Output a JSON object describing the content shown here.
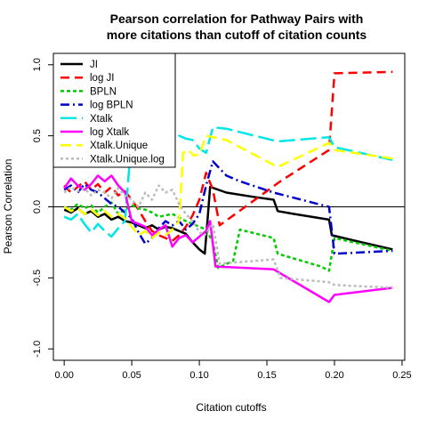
{
  "chart_data": {
    "type": "line",
    "title_lines": [
      "Pearson correlation for Pathway Pairs with",
      "more citations than cutoff of citation counts"
    ],
    "xlabel": "Citation cutoffs",
    "ylabel": "Pearson Correlation",
    "xlim": [
      0.0,
      0.25
    ],
    "ylim": [
      -1.0,
      1.0
    ],
    "x_ticks": [
      0.0,
      0.05,
      0.1,
      0.15,
      0.2,
      0.25
    ],
    "x_tick_labels": [
      "0.00",
      "0.05",
      "0.10",
      "0.15",
      "0.20",
      "0.25"
    ],
    "y_ticks": [
      -1.0,
      -0.5,
      0.0,
      0.5,
      1.0
    ],
    "y_tick_labels": [
      "-1.0",
      "-0.5",
      "0.0",
      "0.5",
      "1.0"
    ],
    "reference_line_y": 0,
    "grid": false,
    "legend_position": "top-left",
    "series": [
      {
        "name": "JI",
        "color": "#000000",
        "dash": "solid",
        "points": [
          [
            0.0,
            -0.02
          ],
          [
            0.005,
            -0.04
          ],
          [
            0.01,
            -0.01
          ],
          [
            0.015,
            -0.05
          ],
          [
            0.02,
            -0.03
          ],
          [
            0.025,
            -0.07
          ],
          [
            0.03,
            -0.05
          ],
          [
            0.035,
            -0.09
          ],
          [
            0.04,
            -0.07
          ],
          [
            0.045,
            -0.1
          ],
          [
            0.05,
            -0.11
          ],
          [
            0.055,
            -0.13
          ],
          [
            0.06,
            -0.15
          ],
          [
            0.065,
            -0.13
          ],
          [
            0.07,
            -0.16
          ],
          [
            0.075,
            -0.14
          ],
          [
            0.08,
            -0.15
          ],
          [
            0.085,
            -0.17
          ],
          [
            0.09,
            -0.19
          ],
          [
            0.095,
            -0.25
          ],
          [
            0.1,
            -0.3
          ],
          [
            0.104,
            -0.33
          ],
          [
            0.106,
            -0.1
          ],
          [
            0.108,
            0.14
          ],
          [
            0.12,
            0.1
          ],
          [
            0.14,
            0.07
          ],
          [
            0.155,
            0.05
          ],
          [
            0.158,
            -0.03
          ],
          [
            0.17,
            -0.05
          ],
          [
            0.196,
            -0.09
          ],
          [
            0.198,
            -0.2
          ],
          [
            0.22,
            -0.25
          ],
          [
            0.243,
            -0.3
          ]
        ]
      },
      {
        "name": "log JI",
        "color": "#ff0000",
        "dash": "10,6",
        "points": [
          [
            0.0,
            0.15
          ],
          [
            0.005,
            0.1
          ],
          [
            0.01,
            0.14
          ],
          [
            0.015,
            0.18
          ],
          [
            0.02,
            0.12
          ],
          [
            0.025,
            0.16
          ],
          [
            0.03,
            0.1
          ],
          [
            0.035,
            0.14
          ],
          [
            0.04,
            0.08
          ],
          [
            0.045,
            0.11
          ],
          [
            0.05,
            0.05
          ],
          [
            0.055,
            -0.02
          ],
          [
            0.06,
            -0.1
          ],
          [
            0.065,
            -0.17
          ],
          [
            0.07,
            -0.2
          ],
          [
            0.075,
            -0.22
          ],
          [
            0.08,
            -0.24
          ],
          [
            0.085,
            -0.2
          ],
          [
            0.09,
            -0.14
          ],
          [
            0.095,
            -0.06
          ],
          [
            0.1,
            0.05
          ],
          [
            0.105,
            0.24
          ],
          [
            0.11,
            0.12
          ],
          [
            0.115,
            -0.13
          ],
          [
            0.16,
            0.18
          ],
          [
            0.196,
            0.4
          ],
          [
            0.2,
            0.94
          ],
          [
            0.243,
            0.95
          ]
        ]
      },
      {
        "name": "BPLN",
        "color": "#00cc00",
        "dash": "4,3",
        "points": [
          [
            0.0,
            0.0
          ],
          [
            0.005,
            -0.02
          ],
          [
            0.01,
            0.02
          ],
          [
            0.015,
            -0.01
          ],
          [
            0.02,
            0.01
          ],
          [
            0.025,
            -0.04
          ],
          [
            0.03,
            0.0
          ],
          [
            0.035,
            0.03
          ],
          [
            0.04,
            -0.05
          ],
          [
            0.045,
            -0.02
          ],
          [
            0.05,
            0.01
          ],
          [
            0.055,
            -0.01
          ],
          [
            0.06,
            -0.02
          ],
          [
            0.065,
            -0.04
          ],
          [
            0.07,
            -0.07
          ],
          [
            0.08,
            -0.05
          ],
          [
            0.09,
            -0.1
          ],
          [
            0.1,
            -0.14
          ],
          [
            0.105,
            -0.16
          ],
          [
            0.11,
            -0.25
          ],
          [
            0.114,
            -0.43
          ],
          [
            0.125,
            -0.38
          ],
          [
            0.13,
            -0.16
          ],
          [
            0.155,
            -0.22
          ],
          [
            0.158,
            -0.33
          ],
          [
            0.19,
            -0.42
          ],
          [
            0.196,
            -0.45
          ],
          [
            0.2,
            -0.22
          ],
          [
            0.243,
            -0.31
          ]
        ]
      },
      {
        "name": "log BPLN",
        "color": "#0000cc",
        "dash": "10,4,2,4",
        "points": [
          [
            0.0,
            0.12
          ],
          [
            0.005,
            0.15
          ],
          [
            0.01,
            0.1
          ],
          [
            0.015,
            0.16
          ],
          [
            0.02,
            0.12
          ],
          [
            0.025,
            0.1
          ],
          [
            0.03,
            0.06
          ],
          [
            0.035,
            0.02
          ],
          [
            0.04,
            0.0
          ],
          [
            0.045,
            -0.04
          ],
          [
            0.05,
            -0.08
          ],
          [
            0.055,
            -0.18
          ],
          [
            0.06,
            -0.26
          ],
          [
            0.065,
            -0.22
          ],
          [
            0.07,
            -0.15
          ],
          [
            0.075,
            -0.1
          ],
          [
            0.08,
            -0.13
          ],
          [
            0.085,
            -0.1
          ],
          [
            0.09,
            -0.16
          ],
          [
            0.095,
            -0.12
          ],
          [
            0.1,
            -0.05
          ],
          [
            0.105,
            0.15
          ],
          [
            0.11,
            0.32
          ],
          [
            0.12,
            0.22
          ],
          [
            0.13,
            0.18
          ],
          [
            0.155,
            0.1
          ],
          [
            0.196,
            0.0
          ],
          [
            0.2,
            -0.33
          ],
          [
            0.243,
            -0.31
          ]
        ]
      },
      {
        "name": "Xtalk",
        "color": "#00e5e5",
        "dash": "18,6",
        "points": [
          [
            0.0,
            -0.07
          ],
          [
            0.005,
            -0.09
          ],
          [
            0.01,
            -0.05
          ],
          [
            0.015,
            -0.12
          ],
          [
            0.02,
            -0.18
          ],
          [
            0.025,
            -0.12
          ],
          [
            0.03,
            -0.17
          ],
          [
            0.035,
            -0.21
          ],
          [
            0.04,
            -0.15
          ],
          [
            0.045,
            -0.1
          ],
          [
            0.05,
            0.5
          ],
          [
            0.055,
            0.48
          ],
          [
            0.06,
            0.46
          ],
          [
            0.065,
            0.5
          ],
          [
            0.07,
            0.45
          ],
          [
            0.075,
            0.5
          ],
          [
            0.08,
            0.46
          ],
          [
            0.085,
            0.5
          ],
          [
            0.09,
            0.48
          ],
          [
            0.095,
            0.47
          ],
          [
            0.1,
            0.41
          ],
          [
            0.105,
            0.38
          ],
          [
            0.11,
            0.56
          ],
          [
            0.12,
            0.55
          ],
          [
            0.158,
            0.46
          ],
          [
            0.196,
            0.49
          ],
          [
            0.2,
            0.42
          ],
          [
            0.243,
            0.33
          ]
        ]
      },
      {
        "name": "log Xtalk",
        "color": "#ff00ff",
        "dash": "solid",
        "points": [
          [
            0.0,
            0.13
          ],
          [
            0.005,
            0.2
          ],
          [
            0.01,
            0.15
          ],
          [
            0.015,
            0.12
          ],
          [
            0.02,
            0.16
          ],
          [
            0.025,
            0.22
          ],
          [
            0.03,
            0.18
          ],
          [
            0.035,
            0.22
          ],
          [
            0.04,
            0.15
          ],
          [
            0.045,
            0.1
          ],
          [
            0.05,
            -0.1
          ],
          [
            0.055,
            -0.12
          ],
          [
            0.06,
            -0.14
          ],
          [
            0.065,
            -0.2
          ],
          [
            0.07,
            -0.16
          ],
          [
            0.075,
            -0.13
          ],
          [
            0.08,
            -0.28
          ],
          [
            0.085,
            -0.22
          ],
          [
            0.09,
            -0.2
          ],
          [
            0.095,
            -0.25
          ],
          [
            0.1,
            -0.21
          ],
          [
            0.105,
            -0.17
          ],
          [
            0.108,
            -0.1
          ],
          [
            0.112,
            -0.42
          ],
          [
            0.155,
            -0.44
          ],
          [
            0.196,
            -0.67
          ],
          [
            0.2,
            -0.62
          ],
          [
            0.243,
            -0.57
          ]
        ]
      },
      {
        "name": "Xtalk.Unique",
        "color": "#ffff00",
        "dash": "12,6",
        "points": [
          [
            0.0,
            0.0
          ],
          [
            0.005,
            -0.03
          ],
          [
            0.01,
            -0.01
          ],
          [
            0.015,
            -0.05
          ],
          [
            0.02,
            -0.02
          ],
          [
            0.025,
            -0.06
          ],
          [
            0.03,
            -0.03
          ],
          [
            0.035,
            -0.07
          ],
          [
            0.04,
            -0.05
          ],
          [
            0.045,
            -0.08
          ],
          [
            0.05,
            -0.14
          ],
          [
            0.055,
            -0.2
          ],
          [
            0.06,
            -0.17
          ],
          [
            0.065,
            -0.22
          ],
          [
            0.07,
            -0.18
          ],
          [
            0.075,
            -0.2
          ],
          [
            0.08,
            -0.16
          ],
          [
            0.085,
            -0.1
          ],
          [
            0.088,
            0.38
          ],
          [
            0.092,
            0.4
          ],
          [
            0.096,
            0.36
          ],
          [
            0.1,
            0.37
          ],
          [
            0.105,
            0.5
          ],
          [
            0.12,
            0.47
          ],
          [
            0.158,
            0.28
          ],
          [
            0.196,
            0.45
          ],
          [
            0.2,
            0.4
          ],
          [
            0.243,
            0.34
          ]
        ]
      },
      {
        "name": "Xtalk.Unique.log",
        "color": "#bbbbbb",
        "dash": "3,3",
        "points": [
          [
            0.0,
            0.1
          ],
          [
            0.005,
            0.14
          ],
          [
            0.01,
            0.11
          ],
          [
            0.015,
            0.13
          ],
          [
            0.02,
            0.08
          ],
          [
            0.025,
            0.12
          ],
          [
            0.03,
            0.1
          ],
          [
            0.035,
            0.06
          ],
          [
            0.04,
            0.13
          ],
          [
            0.045,
            0.08
          ],
          [
            0.05,
            0.05
          ],
          [
            0.055,
            0.0
          ],
          [
            0.06,
            0.1
          ],
          [
            0.065,
            0.05
          ],
          [
            0.07,
            0.15
          ],
          [
            0.075,
            0.1
          ],
          [
            0.08,
            0.12
          ],
          [
            0.085,
            0.02
          ],
          [
            0.09,
            -0.05
          ],
          [
            0.095,
            -0.1
          ],
          [
            0.1,
            -0.18
          ],
          [
            0.104,
            -0.2
          ],
          [
            0.11,
            -0.12
          ],
          [
            0.115,
            -0.4
          ],
          [
            0.155,
            -0.37
          ],
          [
            0.16,
            -0.5
          ],
          [
            0.196,
            -0.53
          ],
          [
            0.2,
            -0.55
          ],
          [
            0.243,
            -0.57
          ]
        ]
      }
    ]
  }
}
